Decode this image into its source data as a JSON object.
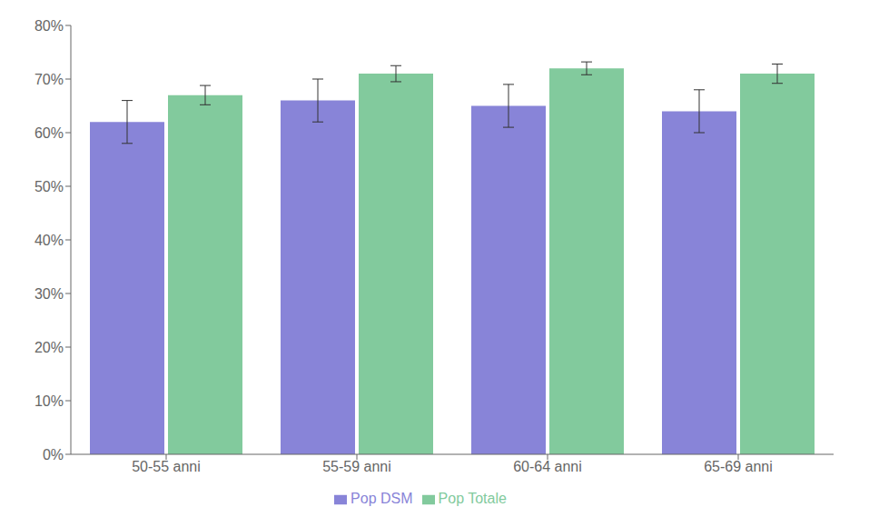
{
  "chart_data": {
    "type": "bar",
    "categories": [
      "50-55 anni",
      "55-59 anni",
      "60-64 anni",
      "65-69 anni"
    ],
    "series": [
      {
        "name": "Pop DSM",
        "values": [
          0.62,
          0.66,
          0.65,
          0.64
        ],
        "errors": [
          0.04,
          0.04,
          0.04,
          0.04
        ]
      },
      {
        "name": "Pop Totale",
        "values": [
          0.67,
          0.71,
          0.72,
          0.71
        ],
        "errors": [
          0.018,
          0.015,
          0.012,
          0.018
        ]
      }
    ],
    "ylim": [
      0,
      0.8
    ],
    "yticks": [
      {
        "value": 0.0,
        "label": "0%"
      },
      {
        "value": 0.1,
        "label": "10%"
      },
      {
        "value": 0.2,
        "label": "20%"
      },
      {
        "value": 0.3,
        "label": "30%"
      },
      {
        "value": 0.4,
        "label": "40%"
      },
      {
        "value": 0.5,
        "label": "50%"
      },
      {
        "value": 0.6,
        "label": "60%"
      },
      {
        "value": 0.7,
        "label": "70%"
      },
      {
        "value": 0.8,
        "label": "80%"
      }
    ],
    "grid": false,
    "legend": "bottom"
  }
}
